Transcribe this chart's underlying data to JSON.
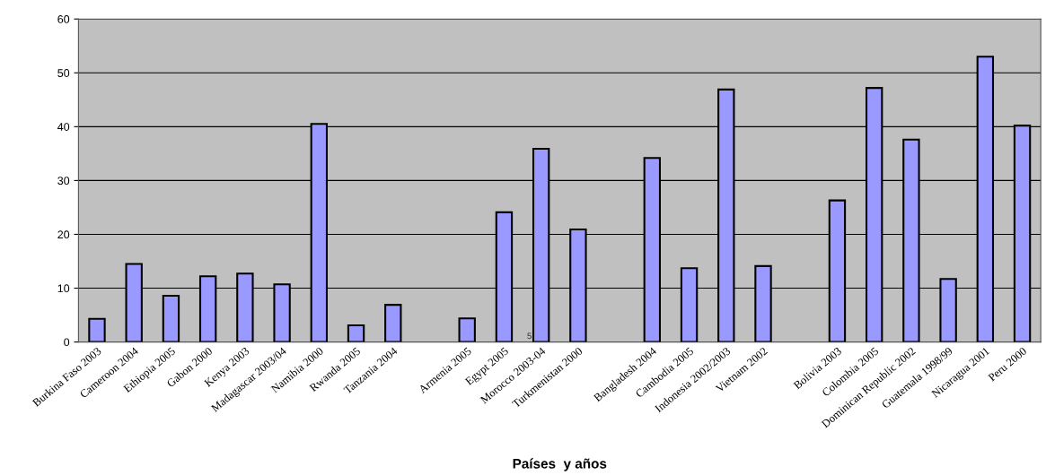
{
  "chart_data": {
    "type": "bar",
    "xlabel": "Países  y años",
    "categories": [
      "Burkina Faso 2003",
      "Cameroon 2004",
      "Ethiopia 2005",
      "Gabon 2000",
      "Kenya 2003",
      "Madagascar 2003/04",
      "Namibia 2000",
      "Rwanda 2005",
      "Tanzania 2004",
      null,
      "Armenia 2005",
      "Egypt 2005",
      "Morocco 2003-04",
      "Turkmenistan 2000",
      null,
      "Bangladesh 2004",
      "Cambodia 2005",
      "Indonesia 2002/2003",
      "Vietnam 2002",
      null,
      "Bolivia 2003",
      "Colombia 2005",
      "Dominican Republic 2002",
      "Guatemala 1998/99",
      "Nicaragua 2001",
      "Peru 2000"
    ],
    "values": [
      4.3,
      14.5,
      8.6,
      12.2,
      12.7,
      10.7,
      40.5,
      3.1,
      6.9,
      null,
      4.4,
      24.1,
      35.9,
      20.9,
      null,
      34.2,
      13.7,
      46.9,
      14.1,
      null,
      26.3,
      47.2,
      37.6,
      11.7,
      53.0,
      40.2
    ],
    "color": "#9999ff",
    "ylim": [
      0,
      60
    ],
    "yticks": [
      0,
      10,
      20,
      30,
      40,
      50,
      60
    ],
    "grid": "y",
    "annotations": [
      {
        "text": "5",
        "x": "Morocco 2003-04",
        "y": 1
      }
    ]
  }
}
